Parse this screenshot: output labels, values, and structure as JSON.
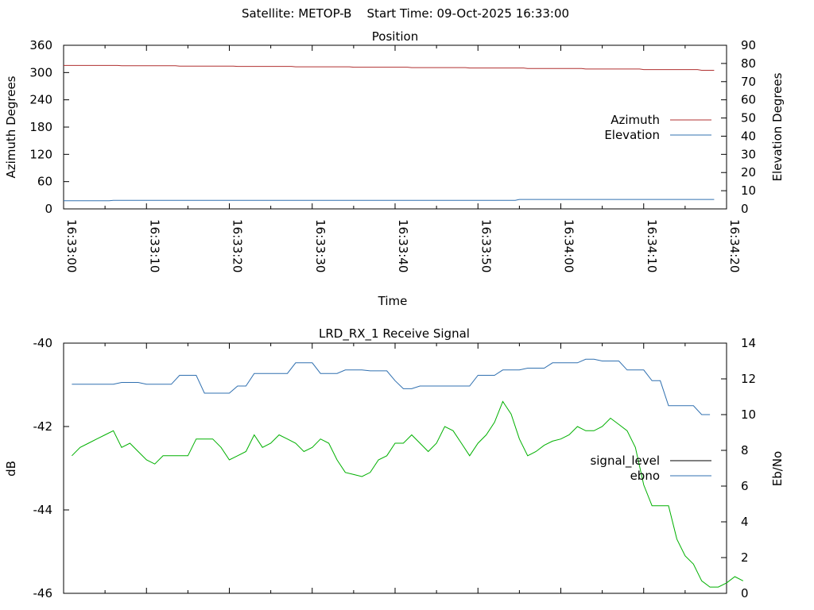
{
  "header": "Satellite: METOP-B    Start Time: 09-Oct-2025 16:33:00",
  "chart_data": [
    {
      "type": "line",
      "title": "Position",
      "xlabel": "Time",
      "ylabel": "Azimuth Degrees",
      "y2label": "Elevation Degrees",
      "x_range": [
        "16:33:00",
        "16:34:20"
      ],
      "ylim": [
        0,
        360
      ],
      "y2lim": [
        0,
        90
      ],
      "y_ticks": [
        0,
        60,
        120,
        180,
        240,
        300,
        360
      ],
      "y2_ticks": [
        0,
        10,
        20,
        30,
        40,
        50,
        60,
        70,
        80,
        90
      ],
      "x_ticks": [
        "16:33:00",
        "16:33:10",
        "16:33:20",
        "16:33:30",
        "16:33:40",
        "16:33:50",
        "16:34:00",
        "16:34:10",
        "16:34:20"
      ],
      "grid": false,
      "legend_position": "right",
      "series": [
        {
          "name": "Azimuth",
          "axis": "y",
          "color": "#b03030",
          "points": [
            [
              0,
              315.6
            ],
            [
              6.5,
              315.6
            ],
            [
              7,
              315
            ],
            [
              13.5,
              315
            ],
            [
              14,
              314.1
            ],
            [
              20.5,
              314.1
            ],
            [
              21,
              313.5
            ],
            [
              27.5,
              313.5
            ],
            [
              28,
              312.7
            ],
            [
              34.5,
              312.7
            ],
            [
              35,
              311.7
            ],
            [
              41.5,
              311.7
            ],
            [
              42,
              310.9
            ],
            [
              48.5,
              310.9
            ],
            [
              49,
              310.1
            ],
            [
              55.5,
              310.1
            ],
            [
              56,
              309
            ],
            [
              62.5,
              309
            ],
            [
              63,
              307.8
            ],
            [
              69.5,
              307.8
            ],
            [
              70,
              306.5
            ],
            [
              76.5,
              306.5
            ],
            [
              77,
              305
            ],
            [
              78.5,
              305
            ]
          ]
        },
        {
          "name": "Elevation",
          "axis": "y2",
          "color": "#3070b0",
          "points": [
            [
              0,
              4.5
            ],
            [
              5.5,
              4.5
            ],
            [
              6,
              4.7
            ],
            [
              54.5,
              4.7
            ],
            [
              55,
              5.2
            ],
            [
              78.5,
              5.2
            ]
          ]
        }
      ]
    },
    {
      "type": "line",
      "title": "LRD_RX_1 Receive Signal",
      "xlabel": "",
      "ylabel": "dB",
      "y2label": "Eb/No",
      "ylim": [
        -46,
        -40
      ],
      "y2lim": [
        0,
        14
      ],
      "y_ticks": [
        -46,
        -44,
        -42,
        -40
      ],
      "y2_ticks": [
        0,
        2,
        4,
        6,
        8,
        10,
        12,
        14
      ],
      "x_range": [
        "16:33:00",
        "16:34:20"
      ],
      "grid": false,
      "legend_position": "right",
      "series": [
        {
          "name": "signal_level",
          "axis": "y",
          "color": "#00b000",
          "points": [
            [
              1,
              -42.7
            ],
            [
              2,
              -42.5
            ],
            [
              3,
              -42.4
            ],
            [
              4,
              -42.3
            ],
            [
              5,
              -42.2
            ],
            [
              6,
              -42.1
            ],
            [
              7,
              -42.5
            ],
            [
              8,
              -42.4
            ],
            [
              9,
              -42.6
            ],
            [
              10,
              -42.8
            ],
            [
              11,
              -42.9
            ],
            [
              12,
              -42.7
            ],
            [
              14,
              -42.7
            ],
            [
              15,
              -42.7
            ],
            [
              16,
              -42.3
            ],
            [
              18,
              -42.3
            ],
            [
              19,
              -42.5
            ],
            [
              20,
              -42.8
            ],
            [
              21,
              -42.7
            ],
            [
              22,
              -42.6
            ],
            [
              23,
              -42.2
            ],
            [
              24,
              -42.5
            ],
            [
              25,
              -42.4
            ],
            [
              26,
              -42.2
            ],
            [
              27,
              -42.3
            ],
            [
              28,
              -42.4
            ],
            [
              29,
              -42.6
            ],
            [
              30,
              -42.5
            ],
            [
              31,
              -42.3
            ],
            [
              32,
              -42.4
            ],
            [
              33,
              -42.8
            ],
            [
              34,
              -43.1
            ],
            [
              35,
              -43.15
            ],
            [
              36,
              -43.2
            ],
            [
              37,
              -43.1
            ],
            [
              38,
              -42.8
            ],
            [
              39,
              -42.7
            ],
            [
              40,
              -42.4
            ],
            [
              41,
              -42.4
            ],
            [
              42,
              -42.2
            ],
            [
              43,
              -42.4
            ],
            [
              44,
              -42.6
            ],
            [
              45,
              -42.4
            ],
            [
              46,
              -42
            ],
            [
              47,
              -42.1
            ],
            [
              48,
              -42.4
            ],
            [
              49,
              -42.7
            ],
            [
              50,
              -42.4
            ],
            [
              51,
              -42.2
            ],
            [
              52,
              -41.9
            ],
            [
              53,
              -41.4
            ],
            [
              54,
              -41.7
            ],
            [
              55,
              -42.3
            ],
            [
              56,
              -42.7
            ],
            [
              57,
              -42.6
            ],
            [
              58,
              -42.45
            ],
            [
              59,
              -42.35
            ],
            [
              60,
              -42.3
            ],
            [
              61,
              -42.2
            ],
            [
              62,
              -42
            ],
            [
              63,
              -42.1
            ],
            [
              64,
              -42.1
            ],
            [
              65,
              -42
            ],
            [
              66,
              -41.8
            ],
            [
              67,
              -41.95
            ],
            [
              68,
              -42.1
            ],
            [
              69,
              -42.5
            ],
            [
              70,
              -43.4
            ],
            [
              71,
              -43.9
            ],
            [
              73,
              -43.9
            ],
            [
              74,
              -44.7
            ],
            [
              75,
              -45.1
            ],
            [
              76,
              -45.3
            ],
            [
              77,
              -45.7
            ],
            [
              78,
              -45.85
            ],
            [
              79,
              -45.85
            ],
            [
              80,
              -45.75
            ],
            [
              81,
              -45.6
            ],
            [
              82,
              -45.7
            ]
          ]
        },
        {
          "name": "ebno",
          "axis": "y2",
          "color": "#3070b0",
          "points": [
            [
              1,
              11.7
            ],
            [
              6,
              11.7
            ],
            [
              7,
              11.8
            ],
            [
              9,
              11.8
            ],
            [
              10,
              11.7
            ],
            [
              13,
              11.7
            ],
            [
              14,
              12.2
            ],
            [
              16,
              12.2
            ],
            [
              17,
              11.2
            ],
            [
              20,
              11.2
            ],
            [
              21,
              11.6
            ],
            [
              22,
              11.6
            ],
            [
              23,
              12.3
            ],
            [
              27,
              12.3
            ],
            [
              28,
              12.9
            ],
            [
              30,
              12.9
            ],
            [
              31,
              12.3
            ],
            [
              33,
              12.3
            ],
            [
              34,
              12.5
            ],
            [
              36,
              12.5
            ],
            [
              37,
              12.45
            ],
            [
              39,
              12.45
            ],
            [
              40,
              11.9
            ],
            [
              41,
              11.45
            ],
            [
              42,
              11.45
            ],
            [
              43,
              11.6
            ],
            [
              49,
              11.6
            ],
            [
              50,
              12.2
            ],
            [
              52,
              12.2
            ],
            [
              53,
              12.5
            ],
            [
              55,
              12.5
            ],
            [
              56,
              12.6
            ],
            [
              58,
              12.6
            ],
            [
              59,
              12.9
            ],
            [
              62,
              12.9
            ],
            [
              63,
              13.1
            ],
            [
              64,
              13.1
            ],
            [
              65,
              13
            ],
            [
              67,
              13
            ],
            [
              68,
              12.5
            ],
            [
              70,
              12.5
            ],
            [
              71,
              11.9
            ],
            [
              72,
              11.9
            ],
            [
              73,
              10.5
            ],
            [
              76,
              10.5
            ],
            [
              77,
              10
            ],
            [
              78,
              10
            ]
          ]
        }
      ]
    }
  ]
}
